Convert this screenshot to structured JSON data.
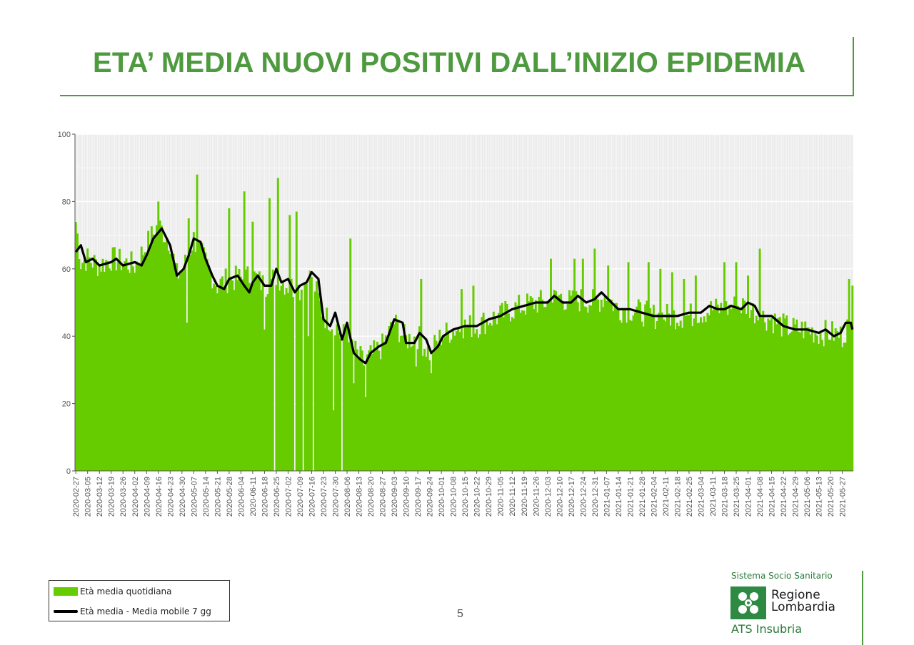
{
  "header": {
    "title": "ETA’ MEDIA NUOVI POSITIVI DALL’INIZIO EPIDEMIA"
  },
  "colors": {
    "title": "#4e9a3e",
    "bars": "#66cc00",
    "line": "#000000",
    "panel_bg": "#ebebeb",
    "grid": "#ffffff",
    "brand_green": "#2e8a43"
  },
  "chart_data": {
    "type": "bar",
    "title": "",
    "xlabel": "",
    "ylabel": "",
    "ylim": [
      0,
      100
    ],
    "yticks": [
      0,
      20,
      40,
      60,
      80,
      100
    ],
    "grid": true,
    "x_start": "2020-02-27",
    "x_end": "2021-06-02",
    "xticks": [
      "2020-02-27",
      "2020-03-05",
      "2020-03-12",
      "2020-03-19",
      "2020-03-26",
      "2020-04-02",
      "2020-04-09",
      "2020-04-16",
      "2020-04-23",
      "2020-04-30",
      "2020-05-07",
      "2020-05-14",
      "2020-05-21",
      "2020-05-28",
      "2020-06-04",
      "2020-06-11",
      "2020-06-18",
      "2020-06-25",
      "2020-07-02",
      "2020-07-09",
      "2020-07-16",
      "2020-07-23",
      "2020-07-30",
      "2020-08-06",
      "2020-08-13",
      "2020-08-20",
      "2020-08-27",
      "2020-09-03",
      "2020-09-10",
      "2020-09-17",
      "2020-09-24",
      "2020-10-01",
      "2020-10-08",
      "2020-10-15",
      "2020-10-22",
      "2020-10-29",
      "2020-11-05",
      "2020-11-12",
      "2020-11-19",
      "2020-11-26",
      "2020-12-03",
      "2020-12-10",
      "2020-12-17",
      "2020-12-24",
      "2020-12-31",
      "2021-01-07",
      "2021-01-14",
      "2021-01-21",
      "2021-01-28",
      "2021-02-04",
      "2021-02-11",
      "2021-02-18",
      "2021-02-25",
      "2021-03-04",
      "2021-03-11",
      "2021-03-18",
      "2021-03-25",
      "2021-04-01",
      "2021-04-08",
      "2021-04-15",
      "2021-04-22",
      "2021-04-29",
      "2021-05-06",
      "2021-05-13",
      "2021-05-20",
      "2021-05-27"
    ],
    "series": [
      {
        "name": "Età media quotidiana",
        "kind": "bar",
        "color": "#66cc00",
        "anchors": [
          [
            "2020-02-27",
            74
          ],
          [
            "2020-03-01",
            62
          ],
          [
            "2020-03-05",
            63
          ],
          [
            "2020-03-12",
            61
          ],
          [
            "2020-03-19",
            63
          ],
          [
            "2020-03-26",
            62
          ],
          [
            "2020-04-02",
            61
          ],
          [
            "2020-04-09",
            67
          ],
          [
            "2020-04-16",
            73
          ],
          [
            "2020-04-23",
            68
          ],
          [
            "2020-04-27",
            58
          ],
          [
            "2020-05-01",
            60
          ],
          [
            "2020-05-07",
            69
          ],
          [
            "2020-05-14",
            62
          ],
          [
            "2020-05-21",
            55
          ],
          [
            "2020-05-28",
            57
          ],
          [
            "2020-06-04",
            57
          ],
          [
            "2020-06-11",
            58
          ],
          [
            "2020-06-18",
            55
          ],
          [
            "2020-06-25",
            58
          ],
          [
            "2020-07-02",
            55
          ],
          [
            "2020-07-09",
            54
          ],
          [
            "2020-07-16",
            58
          ],
          [
            "2020-07-23",
            46
          ],
          [
            "2020-07-30",
            44
          ],
          [
            "2020-08-03",
            39
          ],
          [
            "2020-08-06",
            43
          ],
          [
            "2020-08-10",
            36
          ],
          [
            "2020-08-16",
            32
          ],
          [
            "2020-08-20",
            34
          ],
          [
            "2020-08-27",
            37
          ],
          [
            "2020-09-03",
            44
          ],
          [
            "2020-09-10",
            39
          ],
          [
            "2020-09-17",
            40
          ],
          [
            "2020-09-24",
            35
          ],
          [
            "2020-10-01",
            40
          ],
          [
            "2020-10-08",
            42
          ],
          [
            "2020-10-15",
            43
          ],
          [
            "2020-10-22",
            43
          ],
          [
            "2020-10-29",
            45
          ],
          [
            "2020-11-05",
            46
          ],
          [
            "2020-11-12",
            48
          ],
          [
            "2020-11-19",
            49
          ],
          [
            "2020-11-26",
            50
          ],
          [
            "2020-12-03",
            50
          ],
          [
            "2020-12-10",
            52
          ],
          [
            "2020-12-17",
            50
          ],
          [
            "2020-12-24",
            51
          ],
          [
            "2020-12-31",
            50
          ],
          [
            "2021-01-07",
            52
          ],
          [
            "2021-01-14",
            48
          ],
          [
            "2021-01-21",
            48
          ],
          [
            "2021-01-28",
            47
          ],
          [
            "2021-02-04",
            46
          ],
          [
            "2021-02-11",
            46
          ],
          [
            "2021-02-18",
            46
          ],
          [
            "2021-02-25",
            46
          ],
          [
            "2021-03-04",
            47
          ],
          [
            "2021-03-11",
            48
          ],
          [
            "2021-03-18",
            48
          ],
          [
            "2021-03-25",
            49
          ],
          [
            "2021-04-01",
            49
          ],
          [
            "2021-04-08",
            46
          ],
          [
            "2021-04-15",
            45
          ],
          [
            "2021-04-22",
            43
          ],
          [
            "2021-04-29",
            42
          ],
          [
            "2021-05-06",
            42
          ],
          [
            "2021-05-13",
            41
          ],
          [
            "2021-05-20",
            41
          ],
          [
            "2021-05-27",
            40
          ],
          [
            "2021-05-31",
            44
          ],
          [
            "2021-06-02",
            42
          ]
        ],
        "noise": 4,
        "spikes": [
          [
            "2020-04-16",
            80
          ],
          [
            "2020-05-09",
            88
          ],
          [
            "2020-05-04",
            75
          ],
          [
            "2020-05-28",
            78
          ],
          [
            "2020-06-06",
            83
          ],
          [
            "2020-06-11",
            74
          ],
          [
            "2020-06-21",
            81
          ],
          [
            "2020-06-26",
            87
          ],
          [
            "2020-07-03",
            76
          ],
          [
            "2020-07-07",
            77
          ],
          [
            "2020-08-08",
            69
          ],
          [
            "2020-09-19",
            57
          ],
          [
            "2020-10-13",
            54
          ],
          [
            "2020-10-20",
            55
          ],
          [
            "2020-12-05",
            63
          ],
          [
            "2020-12-19",
            63
          ],
          [
            "2020-12-24",
            63
          ],
          [
            "2020-12-31",
            66
          ],
          [
            "2021-01-08",
            61
          ],
          [
            "2021-01-20",
            62
          ],
          [
            "2021-02-01",
            62
          ],
          [
            "2021-02-08",
            60
          ],
          [
            "2021-02-15",
            59
          ],
          [
            "2021-02-22",
            57
          ],
          [
            "2021-03-01",
            58
          ],
          [
            "2021-03-18",
            62
          ],
          [
            "2021-03-25",
            62
          ],
          [
            "2021-04-01",
            58
          ],
          [
            "2021-04-08",
            66
          ],
          [
            "2021-05-31",
            57
          ],
          [
            "2021-06-02",
            55
          ]
        ],
        "dips": [
          [
            "2020-06-24",
            0
          ],
          [
            "2020-07-06",
            0
          ],
          [
            "2020-07-11",
            0
          ],
          [
            "2020-07-17",
            0
          ],
          [
            "2020-08-03",
            0
          ],
          [
            "2020-07-29",
            18
          ],
          [
            "2020-07-14",
            40
          ],
          [
            "2020-05-03",
            44
          ],
          [
            "2020-06-18",
            42
          ],
          [
            "2020-08-10",
            26
          ],
          [
            "2020-08-17",
            22
          ],
          [
            "2020-09-16",
            31
          ],
          [
            "2020-09-25",
            29
          ]
        ]
      },
      {
        "name": "Età media - Media mobile 7 gg",
        "kind": "line",
        "color": "#000000",
        "points": [
          [
            "2020-02-27",
            65
          ],
          [
            "2020-03-01",
            67
          ],
          [
            "2020-03-04",
            62
          ],
          [
            "2020-03-08",
            63
          ],
          [
            "2020-03-12",
            61
          ],
          [
            "2020-03-19",
            62
          ],
          [
            "2020-03-22",
            63
          ],
          [
            "2020-03-26",
            61
          ],
          [
            "2020-04-02",
            62
          ],
          [
            "2020-04-06",
            61
          ],
          [
            "2020-04-09",
            64
          ],
          [
            "2020-04-13",
            69
          ],
          [
            "2020-04-18",
            72
          ],
          [
            "2020-04-23",
            67
          ],
          [
            "2020-04-27",
            58
          ],
          [
            "2020-05-01",
            60
          ],
          [
            "2020-05-04",
            64
          ],
          [
            "2020-05-07",
            69
          ],
          [
            "2020-05-11",
            68
          ],
          [
            "2020-05-14",
            63
          ],
          [
            "2020-05-18",
            58
          ],
          [
            "2020-05-21",
            55
          ],
          [
            "2020-05-25",
            54
          ],
          [
            "2020-05-28",
            57
          ],
          [
            "2020-06-02",
            58
          ],
          [
            "2020-06-06",
            55
          ],
          [
            "2020-06-09",
            53
          ],
          [
            "2020-06-11",
            56
          ],
          [
            "2020-06-14",
            58
          ],
          [
            "2020-06-18",
            55
          ],
          [
            "2020-06-22",
            55
          ],
          [
            "2020-06-25",
            60
          ],
          [
            "2020-06-28",
            56
          ],
          [
            "2020-07-02",
            57
          ],
          [
            "2020-07-06",
            53
          ],
          [
            "2020-07-09",
            55
          ],
          [
            "2020-07-13",
            56
          ],
          [
            "2020-07-16",
            59
          ],
          [
            "2020-07-20",
            57
          ],
          [
            "2020-07-23",
            45
          ],
          [
            "2020-07-27",
            43
          ],
          [
            "2020-07-30",
            47
          ],
          [
            "2020-08-03",
            39
          ],
          [
            "2020-08-06",
            44
          ],
          [
            "2020-08-10",
            35
          ],
          [
            "2020-08-14",
            33
          ],
          [
            "2020-08-17",
            32
          ],
          [
            "2020-08-20",
            35
          ],
          [
            "2020-08-25",
            37
          ],
          [
            "2020-08-29",
            38
          ],
          [
            "2020-09-03",
            45
          ],
          [
            "2020-09-08",
            44
          ],
          [
            "2020-09-10",
            38
          ],
          [
            "2020-09-15",
            38
          ],
          [
            "2020-09-18",
            41
          ],
          [
            "2020-09-22",
            39
          ],
          [
            "2020-09-25",
            35
          ],
          [
            "2020-09-29",
            37
          ],
          [
            "2020-10-02",
            40
          ],
          [
            "2020-10-08",
            42
          ],
          [
            "2020-10-15",
            43
          ],
          [
            "2020-10-22",
            43
          ],
          [
            "2020-10-29",
            45
          ],
          [
            "2020-11-05",
            46
          ],
          [
            "2020-11-12",
            48
          ],
          [
            "2020-11-19",
            49
          ],
          [
            "2020-11-26",
            50
          ],
          [
            "2020-12-03",
            50
          ],
          [
            "2020-12-07",
            52
          ],
          [
            "2020-12-12",
            50
          ],
          [
            "2020-12-17",
            50
          ],
          [
            "2020-12-21",
            52
          ],
          [
            "2020-12-26",
            50
          ],
          [
            "2020-12-31",
            51
          ],
          [
            "2021-01-04",
            53
          ],
          [
            "2021-01-10",
            50
          ],
          [
            "2021-01-14",
            48
          ],
          [
            "2021-01-21",
            48
          ],
          [
            "2021-01-28",
            47
          ],
          [
            "2021-02-04",
            46
          ],
          [
            "2021-02-11",
            46
          ],
          [
            "2021-02-18",
            46
          ],
          [
            "2021-02-25",
            47
          ],
          [
            "2021-03-04",
            47
          ],
          [
            "2021-03-09",
            49
          ],
          [
            "2021-03-14",
            48
          ],
          [
            "2021-03-18",
            48
          ],
          [
            "2021-03-22",
            49
          ],
          [
            "2021-03-28",
            48
          ],
          [
            "2021-04-01",
            50
          ],
          [
            "2021-04-05",
            49
          ],
          [
            "2021-04-08",
            46
          ],
          [
            "2021-04-15",
            46
          ],
          [
            "2021-04-22",
            43
          ],
          [
            "2021-04-29",
            42
          ],
          [
            "2021-05-06",
            42
          ],
          [
            "2021-05-13",
            41
          ],
          [
            "2021-05-17",
            42
          ],
          [
            "2021-05-22",
            40
          ],
          [
            "2021-05-26",
            41
          ],
          [
            "2021-05-29",
            44
          ],
          [
            "2021-06-01",
            44
          ],
          [
            "2021-06-02",
            42
          ]
        ]
      }
    ],
    "legend": {
      "placement": "bottom-left",
      "entries": [
        {
          "label": "Età media quotidiana",
          "kind": "bar",
          "color": "#66cc00"
        },
        {
          "label": "Età media - Media mobile 7 gg",
          "kind": "line",
          "color": "#000000"
        }
      ]
    }
  },
  "footer": {
    "page_number": "5",
    "logo": {
      "top_text": "Sistema Socio Sanitario",
      "name_line1": "Regione",
      "name_line2": "Lombardia",
      "sub_text": "ATS Insubria"
    }
  }
}
